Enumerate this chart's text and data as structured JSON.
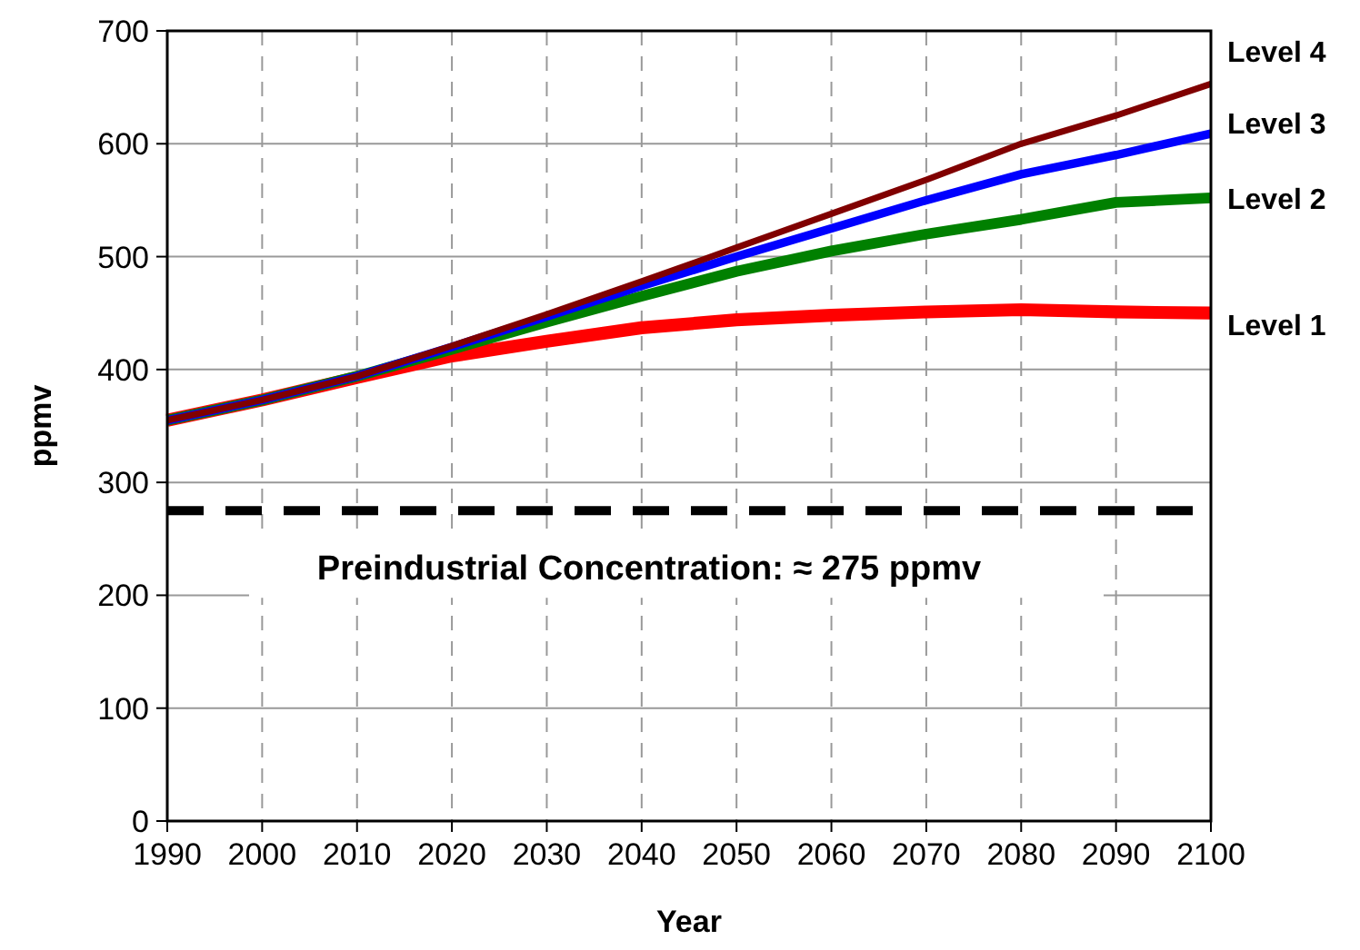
{
  "chart_data": {
    "type": "line",
    "xlabel": "Year",
    "ylabel": "ppmv",
    "x": [
      1990,
      2000,
      2010,
      2020,
      2030,
      2040,
      2050,
      2060,
      2070,
      2080,
      2090,
      2100
    ],
    "xlim": [
      1990,
      2100
    ],
    "xticks": [
      1990,
      2000,
      2010,
      2020,
      2030,
      2040,
      2050,
      2060,
      2070,
      2080,
      2090,
      2100
    ],
    "ylim": [
      0,
      700
    ],
    "yticks": [
      0,
      100,
      200,
      300,
      400,
      500,
      600,
      700
    ],
    "grid": true,
    "legend": false,
    "marker": "none",
    "line_style": "solid",
    "series": [
      {
        "name": "Level 4",
        "color": "#800000",
        "values": [
          355,
          373,
          394,
          421,
          449,
          478,
          508,
          538,
          568,
          600,
          625,
          653
        ]
      },
      {
        "name": "Level 3",
        "color": "#0000ff",
        "values": [
          355,
          373,
          394,
          420,
          447,
          474,
          500,
          525,
          550,
          573,
          590,
          609
        ]
      },
      {
        "name": "Level 2",
        "color": "#008000",
        "values": [
          355,
          373,
          394,
          418,
          442,
          465,
          487,
          505,
          520,
          533,
          548,
          552
        ]
      },
      {
        "name": "Level 1",
        "color": "#ff0000",
        "values": [
          355,
          373,
          393,
          412,
          425,
          437,
          444,
          448,
          451,
          453,
          451,
          450
        ]
      }
    ],
    "ref_lines": [
      {
        "axis": "y",
        "value": 275,
        "label": "Preindustrial Concentration: ≈ 275 ppmv",
        "color": "#000000",
        "line_style": "dashed"
      }
    ]
  }
}
